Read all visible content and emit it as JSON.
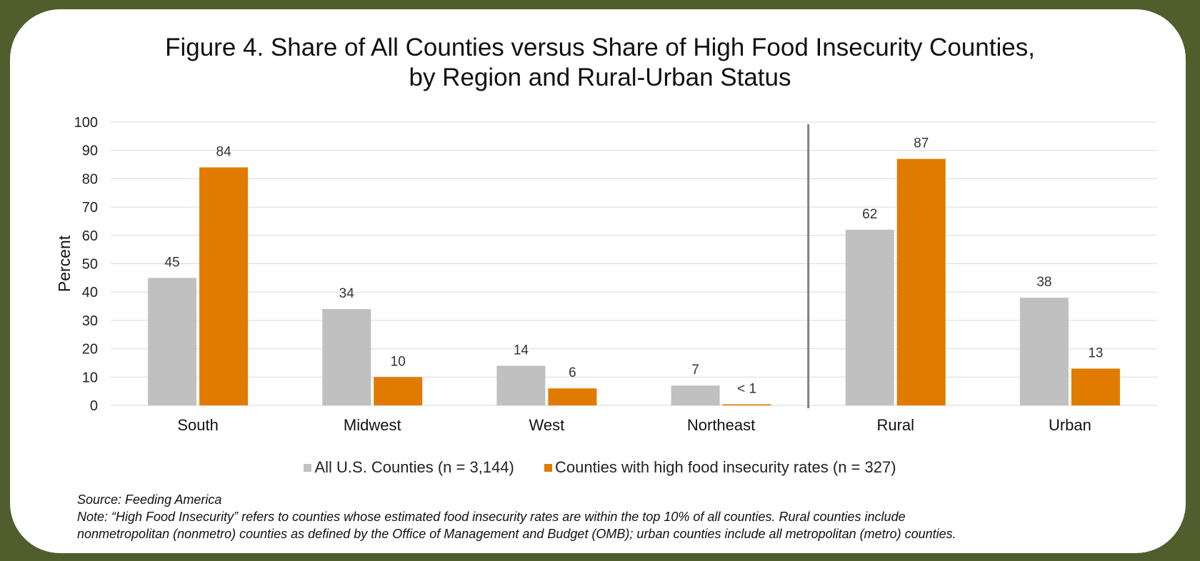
{
  "chart_data": {
    "type": "bar",
    "title_line1": "Figure 4. Share of All Counties versus Share of High Food Insecurity Counties,",
    "title_line2": "by Region and Rural-Urban Status",
    "ylabel": "Percent",
    "xlabel": "",
    "ylim": [
      0,
      100
    ],
    "yticks": [
      0,
      10,
      20,
      30,
      40,
      50,
      60,
      70,
      80,
      90,
      100
    ],
    "grid": true,
    "categories": [
      "South",
      "Midwest",
      "West",
      "Northeast",
      "Rural",
      "Urban"
    ],
    "separator_after_category": "Northeast",
    "series": [
      {
        "name": "All U.S. Counties (n = 3,144)",
        "color": "#c0c0c0",
        "values": [
          45,
          34,
          14,
          7,
          62,
          38
        ],
        "labels": [
          "45",
          "34",
          "14",
          "7",
          "62",
          "38"
        ]
      },
      {
        "name": "Counties with high food insecurity rates (n = 327)",
        "color": "#e07b00",
        "values": [
          84,
          10,
          6,
          0.4,
          87,
          13
        ],
        "labels": [
          "84",
          "10",
          "6",
          "< 1",
          "87",
          "13"
        ]
      }
    ],
    "legend_position": "bottom"
  },
  "notes": {
    "source": "Source: Feeding America",
    "note_line1": "Note: “High Food Insecurity” refers to counties whose estimated food insecurity rates are within the top 10% of all counties. Rural counties include",
    "note_line2": "nonmetropolitan (nonmetro) counties as defined by the Office of Management and Budget (OMB); urban counties include all metropolitan (metro) counties."
  },
  "colors": {
    "frame": "#4f5e2c",
    "gridline": "#d9d9d9",
    "separator": "#808080"
  }
}
